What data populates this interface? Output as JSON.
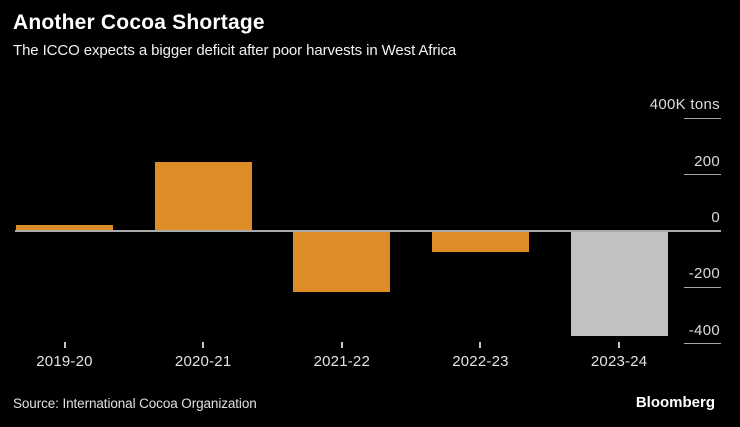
{
  "chart_data": {
    "type": "bar",
    "title": "Another Cocoa Shortage",
    "subtitle": "The ICCO expects a bigger deficit after poor harvests in West Africa",
    "xlabel": "",
    "ylabel": "400K tons",
    "categories": [
      "2019-20",
      "2020-21",
      "2021-22",
      "2022-23",
      "2023-24"
    ],
    "values": [
      20,
      245,
      -216,
      -74,
      -374
    ],
    "unit": "thousand tons",
    "y_axis": {
      "ticks": [
        400,
        200,
        0,
        -200,
        -400
      ],
      "tick_labels": [
        "400K tons",
        "200",
        "0",
        "-200",
        "-400"
      ],
      "range": [
        -450,
        450
      ],
      "side": "right",
      "zero_line": true,
      "grid": "short right-side tick dashes only"
    },
    "legend": "none",
    "highlight_index": 4,
    "colors": {
      "bar_default": "#DD8C28",
      "bar_forecast": "#C1C1C1",
      "background": "#000000",
      "zero_line": "#ABABAB",
      "tick_line": "#A6A6A6",
      "text": "#E3E3E3"
    }
  },
  "footer": {
    "source": "Source: International Cocoa Organization",
    "brand": "Bloomberg"
  }
}
